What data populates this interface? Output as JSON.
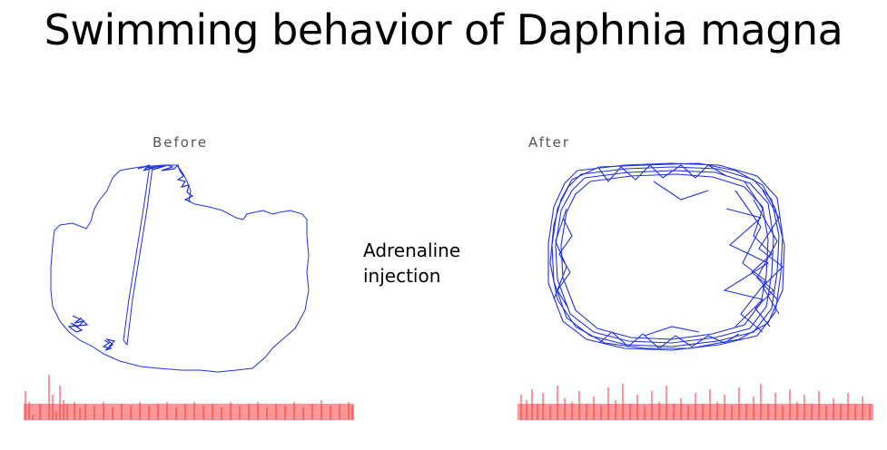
{
  "title": "Swimming behavior of Daphnia magna",
  "panels": {
    "before": {
      "label": "Before"
    },
    "after": {
      "label": "After"
    }
  },
  "treatment": {
    "line1": "Adrenaline",
    "line2": "injection"
  },
  "colors": {
    "track": "#2233dd",
    "activity": "#ff3333",
    "activity_fill": "#ff9999"
  }
}
